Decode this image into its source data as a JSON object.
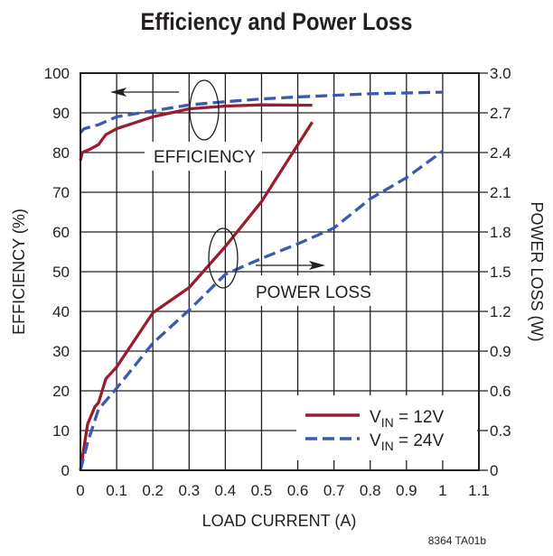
{
  "chart_data": {
    "type": "line",
    "title": "Efficiency and Power Loss",
    "xlabel": "LOAD CURRENT (A)",
    "ylabel": "EFFICIENCY (%)",
    "y2label": "POWER LOSS (W)",
    "xlim": [
      0,
      1.1
    ],
    "ylim": [
      0,
      100
    ],
    "y2lim": [
      0,
      3.0
    ],
    "xticks": [
      "0",
      "0.1",
      "0.2",
      "0.3",
      "0.4",
      "0.5",
      "0.6",
      "0.7",
      "0.8",
      "0.9",
      "1",
      "1.1"
    ],
    "yticks": [
      "0",
      "10",
      "20",
      "30",
      "40",
      "50",
      "60",
      "70",
      "80",
      "90",
      "100"
    ],
    "y2ticks": [
      "0",
      "0.3",
      "0.6",
      "0.9",
      "1.2",
      "1.5",
      "1.8",
      "2.1",
      "2.4",
      "2.7",
      "3.0"
    ],
    "grid": true,
    "legend_position": "bottom-right",
    "annotations": {
      "efficiency": "EFFICIENCY",
      "power_loss": "POWER LOSS"
    },
    "footnote": "8364 TA01b",
    "colors": {
      "v12": "#9b1b30",
      "v24": "#3b59ad"
    },
    "series": [
      {
        "name": "VIN = 12V",
        "legend_main": "V",
        "legend_sub": "IN",
        "legend_rest": " = 12V",
        "axis": "left",
        "style": "solid",
        "color_key": "v12",
        "x": [
          0,
          0.005,
          0.03,
          0.05,
          0.07,
          0.1,
          0.2,
          0.3,
          0.4,
          0.5,
          0.64
        ],
        "y": [
          78,
          80,
          81,
          82,
          84.5,
          86,
          89,
          91,
          91.7,
          92,
          91.9
        ]
      },
      {
        "name": "VIN = 24V",
        "axis": "left",
        "style": "dashed",
        "color_key": "v24",
        "x": [
          0,
          0.01,
          0.05,
          0.1,
          0.2,
          0.3,
          0.4,
          0.5,
          0.6,
          0.8,
          1.0
        ],
        "y": [
          85,
          86,
          87,
          89,
          90.5,
          92,
          92.8,
          93.5,
          94,
          94.8,
          95.2
        ]
      },
      {
        "name": "VIN = 12V power loss",
        "axis": "right",
        "style": "solid",
        "color_key": "v12",
        "x": [
          0,
          0.02,
          0.04,
          0.05,
          0.07,
          0.1,
          0.2,
          0.3,
          0.4,
          0.5,
          0.64
        ],
        "y": [
          0,
          0.35,
          0.48,
          0.51,
          0.69,
          0.78,
          1.19,
          1.38,
          1.69,
          2.03,
          2.63
        ]
      },
      {
        "name": "VIN = 24V power loss",
        "legend_main": "V",
        "legend_sub": "IN",
        "legend_rest": " = 24V",
        "axis": "right",
        "style": "dashed",
        "color_key": "v24",
        "x": [
          0,
          0.02,
          0.05,
          0.1,
          0.2,
          0.3,
          0.4,
          0.5,
          0.6,
          0.7,
          0.8,
          0.9,
          1.0
        ],
        "y": [
          0,
          0.21,
          0.46,
          0.62,
          0.96,
          1.21,
          1.48,
          1.6,
          1.71,
          1.83,
          2.05,
          2.21,
          2.41
        ]
      }
    ]
  }
}
